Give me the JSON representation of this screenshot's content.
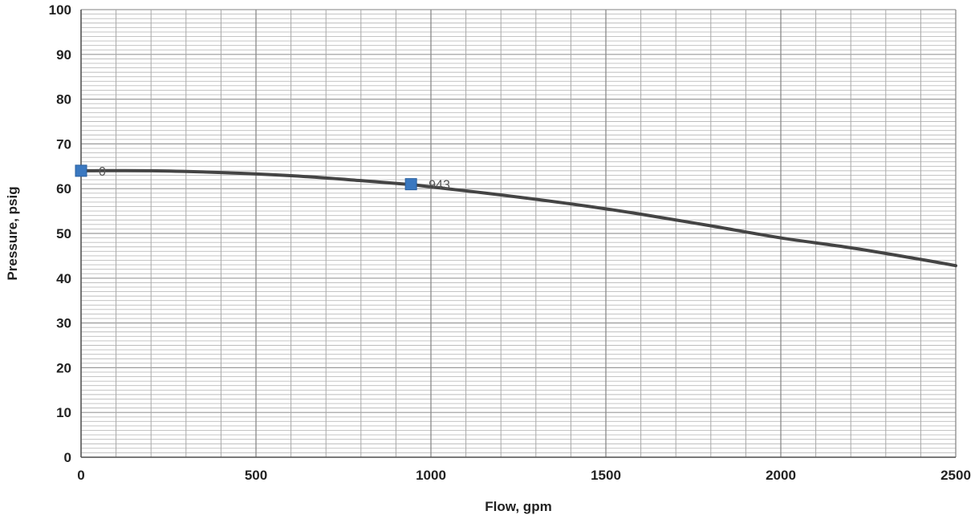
{
  "chart_data": {
    "type": "line",
    "title": "",
    "xlabel": "Flow, gpm",
    "ylabel": "Pressure, psig",
    "xlim": [
      0,
      2500
    ],
    "ylim": [
      0,
      100
    ],
    "x_ticks": [
      0,
      500,
      1000,
      1500,
      2000,
      2500
    ],
    "y_ticks": [
      0,
      10,
      20,
      30,
      40,
      50,
      60,
      70,
      80,
      90,
      100
    ],
    "grid": true,
    "series": [
      {
        "type": "line",
        "color": "#444444",
        "x": [
          0,
          200,
          400,
          600,
          800,
          943,
          1000,
          1200,
          1400,
          1600,
          1800,
          2000,
          2200,
          2400,
          2500
        ],
        "y": [
          64,
          64,
          63.6,
          62.9,
          61.8,
          60.9,
          60.4,
          58.6,
          56.6,
          54.3,
          51.7,
          49.0,
          46.8,
          44.2,
          42.8
        ]
      },
      {
        "type": "scatter",
        "color": "#3a78c0",
        "x": [
          0,
          943
        ],
        "y": [
          64,
          61
        ],
        "labels": [
          "0",
          "943"
        ]
      }
    ]
  }
}
